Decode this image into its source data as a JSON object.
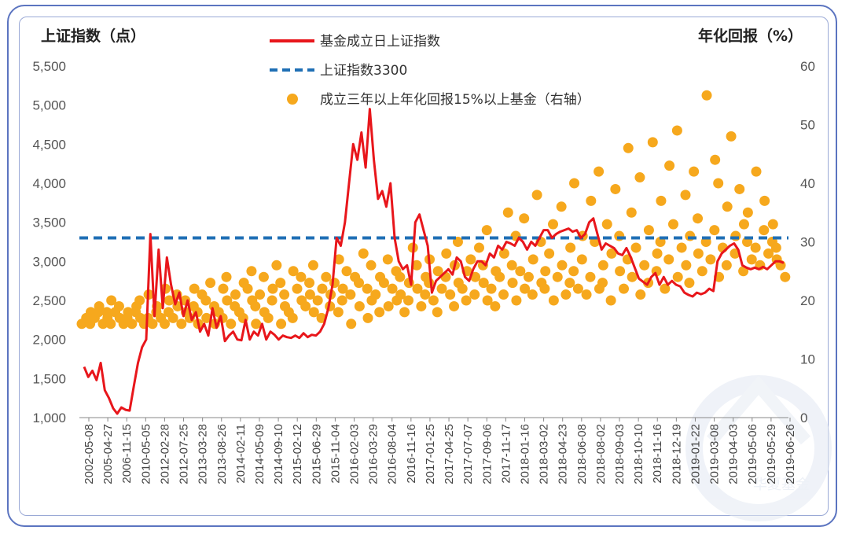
{
  "chart_data": {
    "type": "line",
    "left_axis_title": "上证指数（点）",
    "right_axis_title": "年化回报（%）",
    "left_ticks": [
      "5,500",
      "5,000",
      "4,500",
      "4,000",
      "3,500",
      "3,000",
      "2,500",
      "2,000",
      "1,500",
      "1,000"
    ],
    "left_ylim": [
      1000,
      5500
    ],
    "right_ticks": [
      "60",
      "50",
      "40",
      "30",
      "20",
      "10",
      "0"
    ],
    "right_ylim": [
      0,
      60
    ],
    "x_ticks": [
      "2002-05-08",
      "2005-04-27",
      "2006-11-15",
      "2010-05-05",
      "2012-02-28",
      "2012-07-25",
      "2013-03-28",
      "2013-08-26",
      "2014-02-11",
      "2014-05-09",
      "2014-09-10",
      "2015-02-12",
      "2015-06-29",
      "2015-11-04",
      "2016-02-03",
      "2016-03-29",
      "2016-08-04",
      "2016-11-16",
      "2017-01-25",
      "2017-04-25",
      "2017-07-07",
      "2017-09-06",
      "2017-11-17",
      "2018-01-16",
      "2018-03-02",
      "2018-04-23",
      "2018-06-08",
      "2018-08-02",
      "2018-09-03",
      "2018-10-10",
      "2018-11-16",
      "2018-12-19",
      "2019-01-22",
      "2019-03-08",
      "2019-04-03",
      "2019-05-06",
      "2019-05-29",
      "2019-06-26"
    ],
    "grid": false,
    "legend_position": "top-center",
    "legend": [
      {
        "label": "基金成立日上证指数",
        "color": "#e8161b",
        "style": "solid-line"
      },
      {
        "label": "上证指数3300",
        "color": "#1f6fb5",
        "style": "dashed-line"
      },
      {
        "label": "成立三年以上年化回报15%以上基金（右轴）",
        "color": "#f6a81d",
        "style": "dot"
      }
    ],
    "series": [
      {
        "name": "基金成立日上证指数",
        "axis": "left",
        "color": "#e8161b",
        "values": [
          1650,
          1520,
          1600,
          1480,
          1700,
          1350,
          1250,
          1120,
          1050,
          1130,
          1100,
          1090,
          1400,
          1700,
          1900,
          2000,
          3350,
          2300,
          3150,
          2400,
          3050,
          2700,
          2450,
          2600,
          2300,
          2500,
          2250,
          2350,
          2100,
          2200,
          2050,
          2400,
          2150,
          2300,
          1980,
          2050,
          2100,
          2000,
          1990,
          2250,
          2000,
          2100,
          2050,
          2200,
          2000,
          2100,
          2060,
          2000,
          2050,
          2030,
          2020,
          2050,
          2020,
          2080,
          2030,
          2060,
          2050,
          2100,
          2200,
          2400,
          2700,
          3300,
          3200,
          3500,
          4000,
          4500,
          4300,
          4650,
          4200,
          4950,
          4300,
          3800,
          3900,
          3700,
          4000,
          3300,
          3000,
          2900,
          2950,
          2700,
          3500,
          3600,
          3400,
          3200,
          2600,
          2750,
          2800,
          2850,
          2900,
          2830,
          3050,
          3000,
          2800,
          2750,
          2900,
          3000,
          3000,
          2950,
          3100,
          3050,
          3200,
          3150,
          3250,
          3230,
          3200,
          3300,
          3250,
          3150,
          3250,
          3200,
          3300,
          3400,
          3400,
          3300,
          3350,
          3380,
          3400,
          3420,
          3380,
          3400,
          3300,
          3350,
          3500,
          3550,
          3350,
          3150,
          3230,
          3200,
          3170,
          3100,
          3080,
          3170,
          3060,
          2920,
          2780,
          2740,
          2700,
          2800,
          2850,
          2700,
          2800,
          2700,
          2750,
          2700,
          2680,
          2600,
          2570,
          2550,
          2600,
          2580,
          2600,
          2650,
          2620,
          3000,
          3100,
          3150,
          3200,
          3230,
          3150,
          2950,
          2920,
          2900,
          2920,
          2900,
          2930,
          2900,
          2950,
          3000,
          3000,
          2980
        ]
      },
      {
        "name": "上证指数3300",
        "axis": "left",
        "color": "#1f6fb5",
        "values": [
          3300,
          3300
        ]
      },
      {
        "name": "成立三年以上年化回报15%以上基金（右轴）",
        "axis": "right",
        "color": "#f6a81d",
        "values": [
          16,
          17,
          18,
          16,
          17,
          19,
          18,
          16,
          17,
          18,
          20,
          16,
          18,
          17,
          19,
          16,
          18,
          17,
          16,
          19,
          18,
          17,
          20,
          16,
          21,
          17,
          16,
          19,
          18,
          17,
          22,
          16,
          20,
          18,
          17,
          19,
          21,
          16,
          18,
          20,
          17,
          22,
          19,
          16,
          18,
          21,
          17,
          20,
          23,
          16,
          19,
          18,
          22,
          17,
          20,
          24,
          16,
          21,
          19,
          18,
          23,
          17,
          22,
          20,
          25,
          16,
          19,
          21,
          18,
          24,
          17,
          22,
          20,
          26,
          16,
          23,
          19,
          21,
          18,
          25,
          17,
          22,
          20,
          24,
          19,
          21,
          23,
          18,
          26,
          20,
          22,
          17,
          24,
          21,
          19,
          23,
          27,
          18,
          22,
          20,
          25,
          16,
          21,
          24,
          19,
          23,
          28,
          17,
          22,
          20,
          26,
          21,
          24,
          18,
          23,
          19,
          27,
          22,
          20,
          25,
          21,
          24,
          18,
          23,
          20,
          29,
          22,
          26,
          19,
          24,
          21,
          27,
          23,
          20,
          25,
          18,
          22,
          28,
          24,
          21,
          26,
          19,
          23,
          30,
          22,
          25,
          20,
          27,
          24,
          21,
          29,
          23,
          26,
          20,
          32,
          22,
          25,
          19,
          24,
          28,
          21,
          35,
          23,
          26,
          20,
          31,
          25,
          22,
          34,
          24,
          27,
          21,
          38,
          23,
          30,
          25,
          22,
          28,
          20,
          33,
          24,
          26,
          36,
          21,
          29,
          23,
          40,
          25,
          22,
          31,
          27,
          21,
          37,
          24,
          30,
          22,
          42,
          26,
          23,
          33,
          28,
          20,
          39,
          25,
          31,
          22,
          46,
          27,
          24,
          35,
          29,
          21,
          41,
          26,
          32,
          23,
          47,
          28,
          25,
          37,
          30,
          22,
          43,
          27,
          33,
          24,
          49,
          29,
          26,
          38,
          31,
          23,
          42,
          28,
          34,
          25,
          55,
          30,
          27,
          44,
          32,
          24,
          40,
          29,
          36,
          26,
          48,
          31,
          28,
          39,
          33,
          25,
          35,
          30,
          27,
          42,
          29,
          26,
          37,
          32,
          28,
          33,
          30,
          27,
          29,
          26,
          24
        ]
      }
    ]
  },
  "watermark": "华夏基金"
}
